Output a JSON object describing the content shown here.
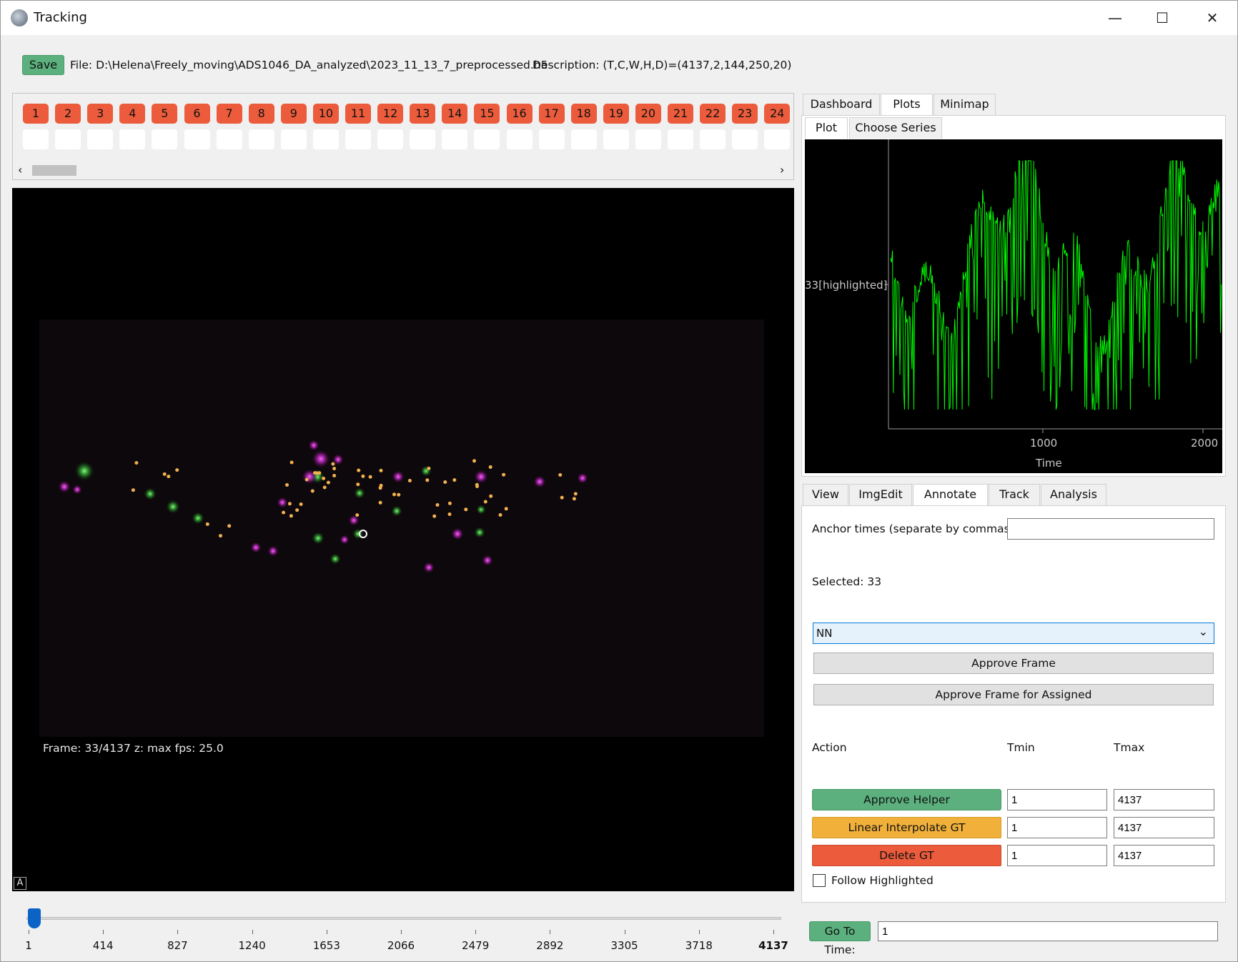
{
  "window": {
    "title": "Tracking"
  },
  "header": {
    "save_label": "Save",
    "file_text": "File: D:\\Helena\\Freely_moving\\ADS1046_DA_analyzed\\2023_11_13_7_preprocessed.h5",
    "description_text": "Description:  (T,C,W,H,D)=(4137,2,144,250,20)"
  },
  "neuron_buttons": [
    "1",
    "2",
    "3",
    "4",
    "5",
    "6",
    "7",
    "8",
    "9",
    "10",
    "11",
    "12",
    "13",
    "14",
    "15",
    "16",
    "17",
    "18",
    "19",
    "20",
    "21",
    "22",
    "23",
    "24"
  ],
  "viewer": {
    "status": "Frame: 33/4137  z: max fps: 25.0",
    "corner_badge": "A"
  },
  "timeline": {
    "ticks": [
      "1",
      "414",
      "827",
      "1240",
      "1653",
      "2066",
      "2479",
      "2892",
      "3305",
      "3718",
      "4137"
    ],
    "value": 33,
    "max": 4137
  },
  "top_tabs": [
    "Dashboard",
    "Plots",
    "Minimap"
  ],
  "top_tabs_active": "Plots",
  "plot_tabs": [
    "Plot",
    "Choose Series"
  ],
  "plot": {
    "y_label": "33[highlighted]",
    "x_label": "Time",
    "x_ticks": [
      "1000",
      "2000"
    ],
    "color": "#00ff00",
    "background": "#000000"
  },
  "bottom_tabs": [
    "View",
    "ImgEdit",
    "Annotate",
    "Track",
    "Analysis"
  ],
  "bottom_tabs_active": "Annotate",
  "annotate": {
    "anchor_label": "Anchor times (separate by commas):",
    "anchor_value": "",
    "selected_text": "Selected: 33",
    "dropdown_value": "NN",
    "approve_frame": "Approve Frame",
    "approve_frame_assigned": "Approve Frame for Assigned",
    "action_header": "Action",
    "tmin_header": "Tmin",
    "tmax_header": "Tmax",
    "rows": [
      {
        "label": "Approve Helper",
        "tmin": "1",
        "tmax": "4137"
      },
      {
        "label": "Linear Interpolate GT",
        "tmin": "1",
        "tmax": "4137"
      },
      {
        "label": "Delete GT",
        "tmin": "1",
        "tmax": "4137"
      }
    ],
    "follow_label": "Follow Highlighted",
    "follow_checked": false
  },
  "goto": {
    "label": "Go To Time:",
    "value": "1"
  },
  "colors": {
    "green": "#5bb07d",
    "orange": "#f0b03a",
    "red": "#ec5c3c",
    "accent": "#0b63c5"
  }
}
